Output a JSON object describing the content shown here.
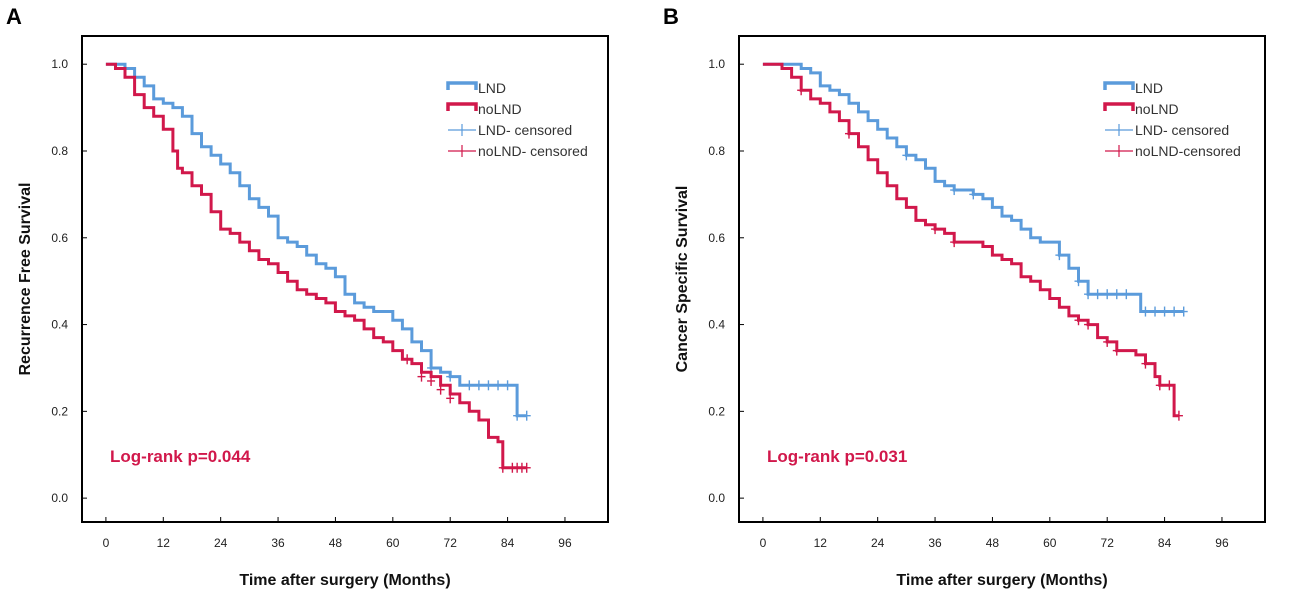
{
  "colors": {
    "lnd": "#5b9bdb",
    "nolnd": "#d1184b",
    "pvalue": "#d1184b",
    "axis": "#000000"
  },
  "chart_data": [
    {
      "type": "line",
      "panel_label": "A",
      "xlabel": "Time after surgery (Months)",
      "ylabel": "Recurrence Free Survival",
      "xlim": [
        -5,
        105
      ],
      "ylim": [
        -0.055,
        1.065
      ],
      "x_ticks": [
        0,
        12,
        24,
        36,
        48,
        60,
        72,
        84,
        96
      ],
      "y_ticks": [
        0.0,
        0.2,
        0.4,
        0.6,
        0.8,
        1.0
      ],
      "y_tick_labels": [
        "0.0",
        "0.2",
        "0.4",
        "0.6",
        "0.8",
        "1.0"
      ],
      "annotation": "Log-rank p=0.044",
      "legend": {
        "placement": "top-right",
        "entries": [
          "LND",
          "noLND",
          "LND- censored",
          "noLND- censored"
        ]
      },
      "series": [
        {
          "name": "LND",
          "color_key": "lnd",
          "points": [
            [
              0,
              1.0
            ],
            [
              4,
              0.99
            ],
            [
              6,
              0.97
            ],
            [
              8,
              0.95
            ],
            [
              10,
              0.92
            ],
            [
              12,
              0.91
            ],
            [
              14,
              0.9
            ],
            [
              16,
              0.88
            ],
            [
              18,
              0.84
            ],
            [
              20,
              0.81
            ],
            [
              22,
              0.79
            ],
            [
              24,
              0.77
            ],
            [
              26,
              0.75
            ],
            [
              28,
              0.72
            ],
            [
              30,
              0.69
            ],
            [
              32,
              0.67
            ],
            [
              34,
              0.65
            ],
            [
              36,
              0.6
            ],
            [
              38,
              0.59
            ],
            [
              40,
              0.58
            ],
            [
              42,
              0.56
            ],
            [
              44,
              0.54
            ],
            [
              46,
              0.53
            ],
            [
              48,
              0.51
            ],
            [
              50,
              0.47
            ],
            [
              52,
              0.45
            ],
            [
              54,
              0.44
            ],
            [
              56,
              0.43
            ],
            [
              58,
              0.43
            ],
            [
              60,
              0.41
            ],
            [
              62,
              0.39
            ],
            [
              64,
              0.36
            ],
            [
              66,
              0.34
            ],
            [
              68,
              0.3
            ],
            [
              70,
              0.29
            ],
            [
              72,
              0.28
            ],
            [
              74,
              0.26
            ],
            [
              85,
              0.26
            ],
            [
              86,
              0.19
            ],
            [
              88,
              0.19
            ]
          ],
          "censored": [
            [
              68,
              0.3
            ],
            [
              72,
              0.28
            ],
            [
              76,
              0.26
            ],
            [
              78,
              0.26
            ],
            [
              80,
              0.26
            ],
            [
              82,
              0.26
            ],
            [
              84,
              0.26
            ],
            [
              86,
              0.19
            ],
            [
              88,
              0.19
            ]
          ]
        },
        {
          "name": "noLND",
          "color_key": "nolnd",
          "points": [
            [
              0,
              1.0
            ],
            [
              2,
              0.99
            ],
            [
              4,
              0.97
            ],
            [
              6,
              0.93
            ],
            [
              8,
              0.9
            ],
            [
              10,
              0.88
            ],
            [
              12,
              0.85
            ],
            [
              14,
              0.8
            ],
            [
              15,
              0.76
            ],
            [
              16,
              0.75
            ],
            [
              18,
              0.72
            ],
            [
              20,
              0.7
            ],
            [
              22,
              0.66
            ],
            [
              24,
              0.62
            ],
            [
              26,
              0.61
            ],
            [
              28,
              0.59
            ],
            [
              30,
              0.57
            ],
            [
              32,
              0.55
            ],
            [
              34,
              0.54
            ],
            [
              36,
              0.52
            ],
            [
              38,
              0.5
            ],
            [
              40,
              0.48
            ],
            [
              42,
              0.47
            ],
            [
              44,
              0.46
            ],
            [
              46,
              0.45
            ],
            [
              48,
              0.43
            ],
            [
              50,
              0.42
            ],
            [
              52,
              0.41
            ],
            [
              54,
              0.39
            ],
            [
              56,
              0.37
            ],
            [
              58,
              0.36
            ],
            [
              60,
              0.34
            ],
            [
              62,
              0.32
            ],
            [
              64,
              0.31
            ],
            [
              66,
              0.29
            ],
            [
              68,
              0.28
            ],
            [
              70,
              0.26
            ],
            [
              72,
              0.24
            ],
            [
              74,
              0.22
            ],
            [
              76,
              0.2
            ],
            [
              78,
              0.18
            ],
            [
              80,
              0.14
            ],
            [
              82,
              0.13
            ],
            [
              83,
              0.07
            ],
            [
              88,
              0.07
            ]
          ],
          "censored": [
            [
              63,
              0.32
            ],
            [
              66,
              0.28
            ],
            [
              68,
              0.27
            ],
            [
              70,
              0.25
            ],
            [
              72,
              0.23
            ],
            [
              83,
              0.07
            ],
            [
              85,
              0.07
            ],
            [
              86,
              0.07
            ],
            [
              87,
              0.07
            ],
            [
              88,
              0.07
            ]
          ]
        }
      ]
    },
    {
      "type": "line",
      "panel_label": "B",
      "xlabel": "Time after surgery (Months)",
      "ylabel": "Cancer Specific Survival",
      "xlim": [
        -5,
        105
      ],
      "ylim": [
        -0.055,
        1.065
      ],
      "x_ticks": [
        0,
        12,
        24,
        36,
        48,
        60,
        72,
        84,
        96
      ],
      "y_ticks": [
        0.0,
        0.2,
        0.4,
        0.6,
        0.8,
        1.0
      ],
      "y_tick_labels": [
        "0.0",
        "0.2",
        "0.4",
        "0.6",
        "0.8",
        "1.0"
      ],
      "annotation": "Log-rank p=0.031",
      "legend": {
        "placement": "top-right",
        "entries": [
          "LND",
          "noLND",
          "LND- censored",
          "noLND-censored"
        ]
      },
      "series": [
        {
          "name": "LND",
          "color_key": "lnd",
          "points": [
            [
              0,
              1.0
            ],
            [
              8,
              0.99
            ],
            [
              10,
              0.98
            ],
            [
              12,
              0.95
            ],
            [
              14,
              0.94
            ],
            [
              16,
              0.93
            ],
            [
              18,
              0.91
            ],
            [
              20,
              0.89
            ],
            [
              22,
              0.87
            ],
            [
              24,
              0.85
            ],
            [
              26,
              0.83
            ],
            [
              28,
              0.81
            ],
            [
              30,
              0.79
            ],
            [
              32,
              0.78
            ],
            [
              34,
              0.76
            ],
            [
              36,
              0.73
            ],
            [
              38,
              0.72
            ],
            [
              40,
              0.71
            ],
            [
              44,
              0.7
            ],
            [
              46,
              0.69
            ],
            [
              48,
              0.67
            ],
            [
              50,
              0.65
            ],
            [
              52,
              0.64
            ],
            [
              54,
              0.62
            ],
            [
              56,
              0.6
            ],
            [
              58,
              0.59
            ],
            [
              62,
              0.56
            ],
            [
              64,
              0.53
            ],
            [
              66,
              0.5
            ],
            [
              68,
              0.47
            ],
            [
              78,
              0.47
            ],
            [
              79,
              0.43
            ],
            [
              88,
              0.43
            ]
          ],
          "censored": [
            [
              30,
              0.79
            ],
            [
              40,
              0.71
            ],
            [
              44,
              0.7
            ],
            [
              62,
              0.56
            ],
            [
              66,
              0.5
            ],
            [
              68,
              0.47
            ],
            [
              70,
              0.47
            ],
            [
              72,
              0.47
            ],
            [
              74,
              0.47
            ],
            [
              76,
              0.47
            ],
            [
              80,
              0.43
            ],
            [
              82,
              0.43
            ],
            [
              84,
              0.43
            ],
            [
              86,
              0.43
            ],
            [
              88,
              0.43
            ]
          ]
        },
        {
          "name": "noLND",
          "color_key": "nolnd",
          "points": [
            [
              0,
              1.0
            ],
            [
              4,
              0.99
            ],
            [
              6,
              0.97
            ],
            [
              8,
              0.94
            ],
            [
              10,
              0.92
            ],
            [
              12,
              0.91
            ],
            [
              14,
              0.89
            ],
            [
              16,
              0.87
            ],
            [
              18,
              0.84
            ],
            [
              20,
              0.81
            ],
            [
              22,
              0.78
            ],
            [
              24,
              0.75
            ],
            [
              26,
              0.72
            ],
            [
              28,
              0.69
            ],
            [
              30,
              0.67
            ],
            [
              32,
              0.64
            ],
            [
              34,
              0.63
            ],
            [
              36,
              0.62
            ],
            [
              38,
              0.61
            ],
            [
              40,
              0.59
            ],
            [
              44,
              0.59
            ],
            [
              46,
              0.58
            ],
            [
              48,
              0.56
            ],
            [
              50,
              0.55
            ],
            [
              52,
              0.54
            ],
            [
              54,
              0.51
            ],
            [
              56,
              0.5
            ],
            [
              58,
              0.48
            ],
            [
              60,
              0.46
            ],
            [
              62,
              0.44
            ],
            [
              64,
              0.42
            ],
            [
              66,
              0.41
            ],
            [
              68,
              0.4
            ],
            [
              70,
              0.37
            ],
            [
              72,
              0.36
            ],
            [
              74,
              0.34
            ],
            [
              78,
              0.33
            ],
            [
              80,
              0.31
            ],
            [
              82,
              0.28
            ],
            [
              83,
              0.26
            ],
            [
              85,
              0.26
            ],
            [
              86,
              0.19
            ],
            [
              87,
              0.19
            ]
          ],
          "censored": [
            [
              8,
              0.94
            ],
            [
              18,
              0.84
            ],
            [
              36,
              0.62
            ],
            [
              40,
              0.59
            ],
            [
              66,
              0.41
            ],
            [
              68,
              0.4
            ],
            [
              72,
              0.36
            ],
            [
              74,
              0.34
            ],
            [
              80,
              0.31
            ],
            [
              83,
              0.26
            ],
            [
              85,
              0.26
            ],
            [
              87,
              0.19
            ]
          ]
        }
      ]
    }
  ]
}
